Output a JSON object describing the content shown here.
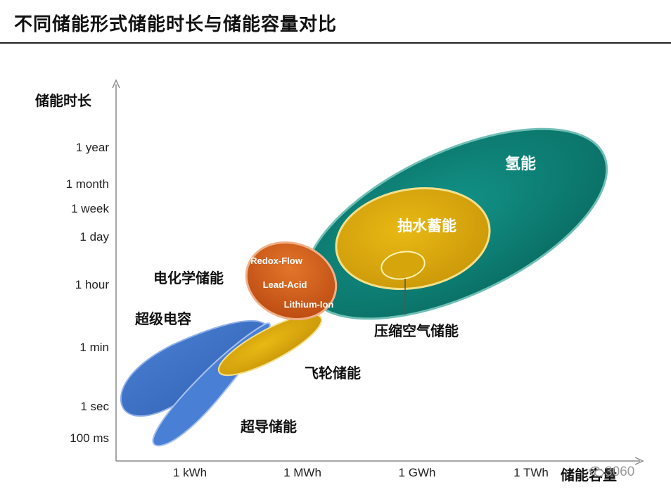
{
  "title": "不同储能形式储能时长与储能容量对比",
  "y_axis_label": "储能时长",
  "x_axis_label": "储能容量",
  "y_ticks": [
    "1 year",
    "1 month",
    "1 week",
    "1 day",
    "1 hour",
    "1 min",
    "1 sec",
    "100 ms"
  ],
  "x_ticks": [
    "1 kWh",
    "1 MWh",
    "1 GWh",
    "1 TWh"
  ],
  "technologies": {
    "hydrogen": "氢能",
    "pumped_hydro": "抽水蓄能",
    "compressed_air": "压缩空气储能",
    "electrochemical": "电化学储能",
    "redox_flow": "Redox-Flow",
    "lead_acid": "Lead-Acid",
    "lithium_ion": "Lithium-Ion",
    "supercapacitor": "超级电容",
    "flywheel": "飞轮储能",
    "superconducting": "超导储能"
  },
  "colors": {
    "hydrogen": "#0f8378",
    "pumped_hydro": "#d9aa0b",
    "electrochemical": "#cd5a17",
    "capacitor_blue": "#3f72c8",
    "superconducting_blue": "#4a7fd6",
    "flywheel_gold": "#d7a60b"
  },
  "watermark": "3060"
}
